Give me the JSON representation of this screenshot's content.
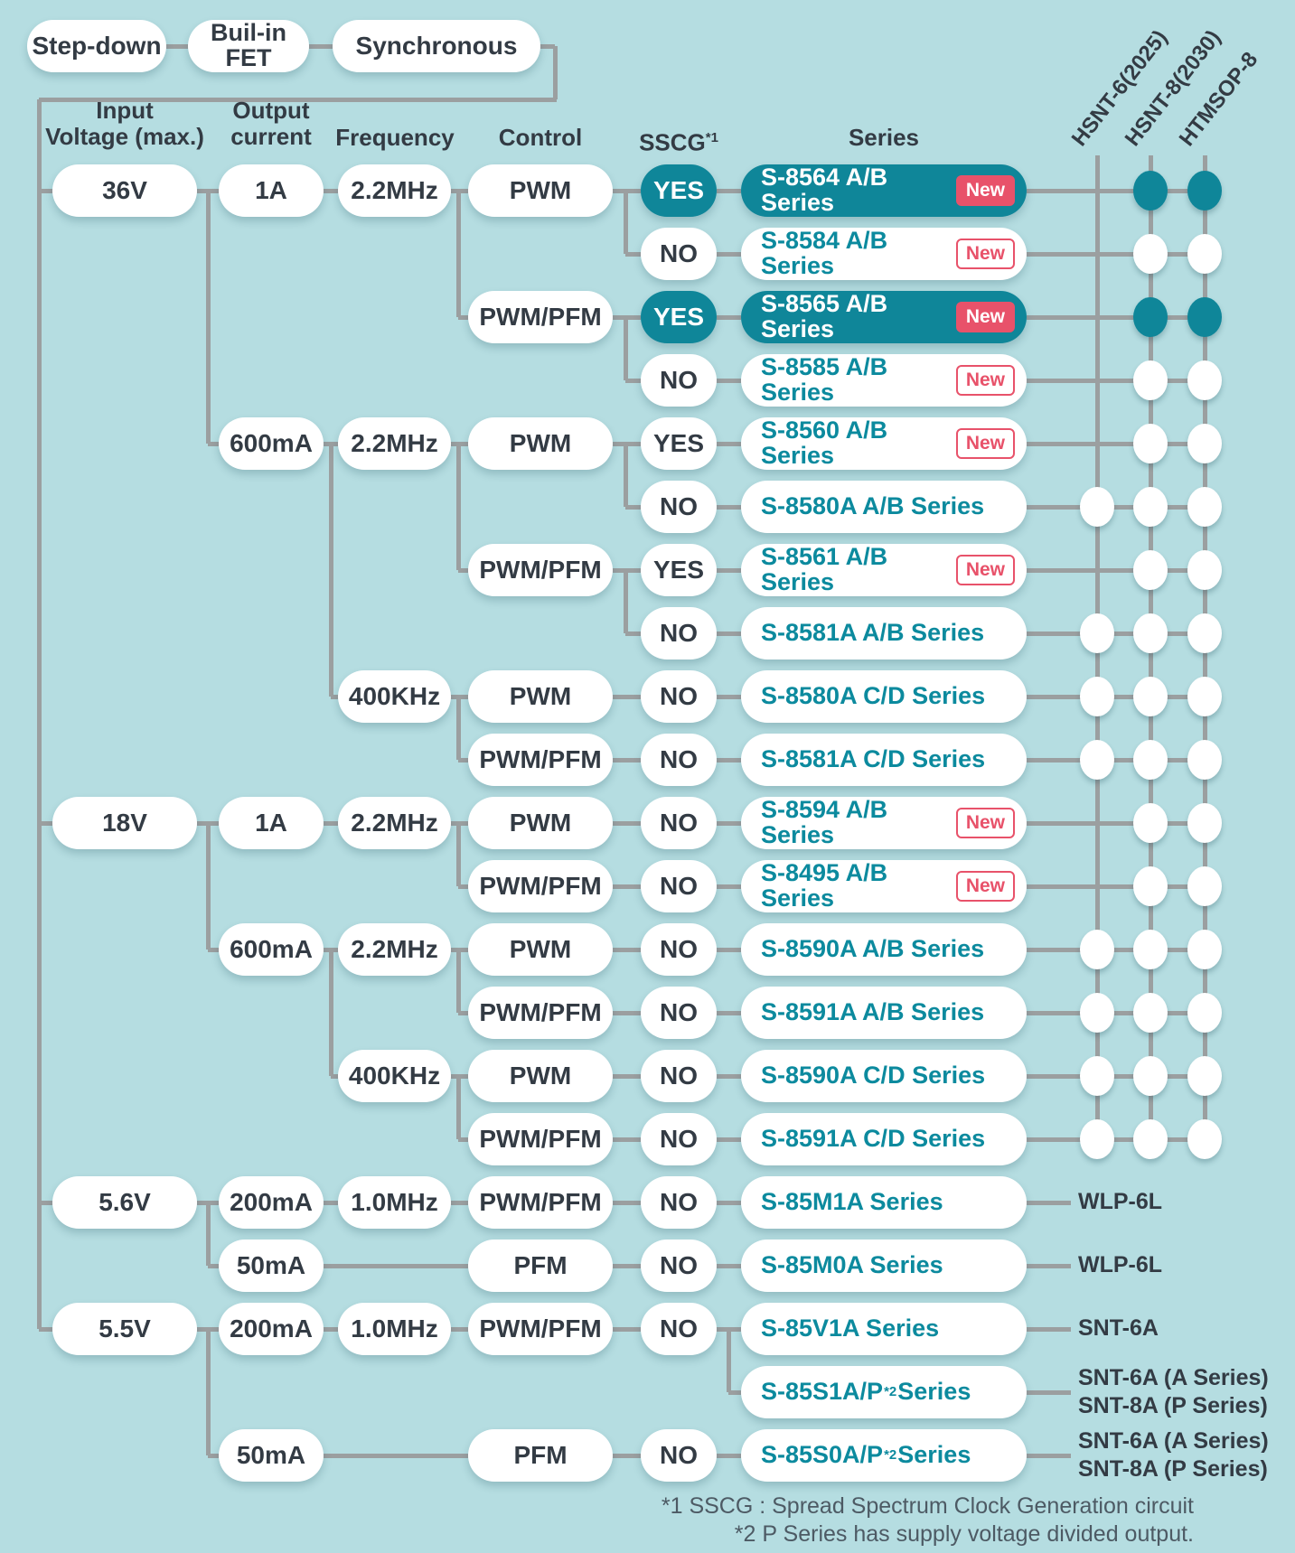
{
  "palette": {
    "background": "#b5dde1",
    "teal_fill": "#0f8699",
    "teal_text": "#0c8a9e",
    "new_red": "#e8526a",
    "dark_text": "#333b44",
    "line_gray": "#9b9fa0",
    "footnote_text": "#4d5a64"
  },
  "top_flow": {
    "step_down": "Step-down",
    "built_in_fet_line1": "Buil-in",
    "built_in_fet_line2": "FET",
    "synchronous": "Synchronous"
  },
  "headers": {
    "input_voltage_line1": "Input",
    "input_voltage_line2": "Voltage (max.)",
    "output_current_line1": "Output",
    "output_current_line2": "current",
    "frequency": "Frequency",
    "control": "Control",
    "sscg": "SSCG",
    "sscg_sup": "*1",
    "series": "Series"
  },
  "packages": {
    "columns": [
      "HSNT-6(2025)",
      "HSNT-8(2030)",
      "HTMSOP-8"
    ]
  },
  "badge_labels": {
    "new": "New"
  },
  "tree": {
    "voltages": [
      {
        "label": "36V",
        "row": 1,
        "currents": [
          {
            "label": "1A",
            "row": 1,
            "freqs": [
              {
                "label": "2.2MHz",
                "row": 1,
                "controls": [
                  {
                    "label": "PWM",
                    "row": 1,
                    "sscg_rows": [
                      1,
                      2
                    ]
                  },
                  {
                    "label": "PWM/PFM",
                    "row": 3,
                    "sscg_rows": [
                      3,
                      4
                    ]
                  }
                ]
              }
            ]
          },
          {
            "label": "600mA",
            "row": 5,
            "freqs": [
              {
                "label": "2.2MHz",
                "row": 5,
                "controls": [
                  {
                    "label": "PWM",
                    "row": 5,
                    "sscg_rows": [
                      5,
                      6
                    ]
                  },
                  {
                    "label": "PWM/PFM",
                    "row": 7,
                    "sscg_rows": [
                      7,
                      8
                    ]
                  }
                ]
              },
              {
                "label": "400KHz",
                "row": 9,
                "controls": [
                  {
                    "label": "PWM",
                    "row": 9,
                    "sscg_rows": [
                      9
                    ]
                  },
                  {
                    "label": "PWM/PFM",
                    "row": 10,
                    "sscg_rows": [
                      10
                    ]
                  }
                ]
              }
            ]
          }
        ]
      },
      {
        "label": "18V",
        "row": 11,
        "currents": [
          {
            "label": "1A",
            "row": 11,
            "freqs": [
              {
                "label": "2.2MHz",
                "row": 11,
                "controls": [
                  {
                    "label": "PWM",
                    "row": 11,
                    "sscg_rows": [
                      11
                    ]
                  },
                  {
                    "label": "PWM/PFM",
                    "row": 12,
                    "sscg_rows": [
                      12
                    ]
                  }
                ]
              }
            ]
          },
          {
            "label": "600mA",
            "row": 13,
            "freqs": [
              {
                "label": "2.2MHz",
                "row": 13,
                "controls": [
                  {
                    "label": "PWM",
                    "row": 13,
                    "sscg_rows": [
                      13
                    ]
                  },
                  {
                    "label": "PWM/PFM",
                    "row": 14,
                    "sscg_rows": [
                      14
                    ]
                  }
                ]
              },
              {
                "label": "400KHz",
                "row": 15,
                "controls": [
                  {
                    "label": "PWM",
                    "row": 15,
                    "sscg_rows": [
                      15
                    ]
                  },
                  {
                    "label": "PWM/PFM",
                    "row": 16,
                    "sscg_rows": [
                      16
                    ]
                  }
                ]
              }
            ]
          }
        ]
      },
      {
        "label": "5.6V",
        "row": 17,
        "currents": [
          {
            "label": "200mA",
            "row": 17,
            "freqs": [
              {
                "label": "1.0MHz",
                "row": 17,
                "controls": [
                  {
                    "label": "PWM/PFM",
                    "row": 17,
                    "sscg_rows": [
                      17
                    ]
                  }
                ]
              }
            ]
          },
          {
            "label": "50mA",
            "row": 18,
            "direct_control": {
              "label": "PFM",
              "row": 18,
              "sscg_rows": [
                18
              ]
            }
          }
        ]
      },
      {
        "label": "5.5V",
        "row": 19,
        "currents": [
          {
            "label": "200mA",
            "row": 19,
            "freqs": [
              {
                "label": "1.0MHz",
                "row": 19,
                "controls": [
                  {
                    "label": "PWM/PFM",
                    "row": 19,
                    "sscg_rows": [
                      19
                    ]
                  }
                ]
              }
            ]
          },
          {
            "label": "50mA",
            "row": 21,
            "direct_control": {
              "label": "PFM",
              "row": 21,
              "sscg_rows": [
                21
              ]
            }
          }
        ]
      }
    ]
  },
  "rows": [
    {
      "row": 1,
      "sscg": "YES",
      "sscg_highlight": true,
      "series": "S-8564 A/B Series",
      "badge": "solid",
      "highlight": true,
      "dots": [
        1,
        2
      ],
      "dot_teal": true
    },
    {
      "row": 2,
      "sscg": "NO",
      "series": "S-8584 A/B Series",
      "badge": "outline",
      "dots": [
        1,
        2
      ]
    },
    {
      "row": 3,
      "sscg": "YES",
      "sscg_highlight": true,
      "series": "S-8565 A/B Series",
      "badge": "solid",
      "highlight": true,
      "dots": [
        1,
        2
      ],
      "dot_teal": true
    },
    {
      "row": 4,
      "sscg": "NO",
      "series": "S-8585 A/B Series",
      "badge": "outline",
      "dots": [
        1,
        2
      ]
    },
    {
      "row": 5,
      "sscg": "YES",
      "series": "S-8560 A/B Series",
      "badge": "outline",
      "dots": [
        1,
        2
      ]
    },
    {
      "row": 6,
      "sscg": "NO",
      "series": "S-8580A A/B Series",
      "dots": [
        0,
        1,
        2
      ]
    },
    {
      "row": 7,
      "sscg": "YES",
      "series": "S-8561 A/B Series",
      "badge": "outline",
      "dots": [
        1,
        2
      ]
    },
    {
      "row": 8,
      "sscg": "NO",
      "series": "S-8581A A/B Series",
      "dots": [
        0,
        1,
        2
      ]
    },
    {
      "row": 9,
      "sscg": "NO",
      "series": "S-8580A C/D Series",
      "dots": [
        0,
        1,
        2
      ]
    },
    {
      "row": 10,
      "sscg": "NO",
      "series": "S-8581A C/D Series",
      "dots": [
        0,
        1,
        2
      ]
    },
    {
      "row": 11,
      "sscg": "NO",
      "series": "S-8594 A/B Series",
      "badge": "outline",
      "dots": [
        1,
        2
      ]
    },
    {
      "row": 12,
      "sscg": "NO",
      "series": "S-8495 A/B Series",
      "badge": "outline",
      "dots": [
        1,
        2
      ]
    },
    {
      "row": 13,
      "sscg": "NO",
      "series": "S-8590A A/B Series",
      "dots": [
        0,
        1,
        2
      ]
    },
    {
      "row": 14,
      "sscg": "NO",
      "series": "S-8591A A/B Series",
      "dots": [
        0,
        1,
        2
      ]
    },
    {
      "row": 15,
      "sscg": "NO",
      "series": "S-8590A C/D Series",
      "dots": [
        0,
        1,
        2
      ]
    },
    {
      "row": 16,
      "sscg": "NO",
      "series": "S-8591A C/D Series",
      "dots": [
        0,
        1,
        2
      ]
    },
    {
      "row": 17,
      "sscg": "NO",
      "series": "S-85M1A Series",
      "package_text": [
        "WLP-6L"
      ]
    },
    {
      "row": 18,
      "sscg": "NO",
      "series": "S-85M0A Series",
      "package_text": [
        "WLP-6L"
      ]
    },
    {
      "row": 19,
      "sscg": "NO",
      "series": "S-85V1A Series",
      "package_text": [
        "SNT-6A"
      ]
    },
    {
      "row": 20,
      "series": "S-85S1A/P",
      "series_sup": "*2",
      "series_suffix": " Series",
      "branch_from_row": 19,
      "package_text": [
        "SNT-6A (A Series)",
        "SNT-8A (P Series)"
      ]
    },
    {
      "row": 21,
      "sscg": "NO",
      "series": "S-85S0A/P",
      "series_sup": "*2",
      "series_suffix": " Series",
      "package_text": [
        "SNT-6A (A Series)",
        "SNT-8A (P Series)"
      ]
    }
  ],
  "footnotes": [
    "*1 SSCG : Spread Spectrum Clock Generation circuit",
    "*2 P Series has supply voltage divided output."
  ]
}
